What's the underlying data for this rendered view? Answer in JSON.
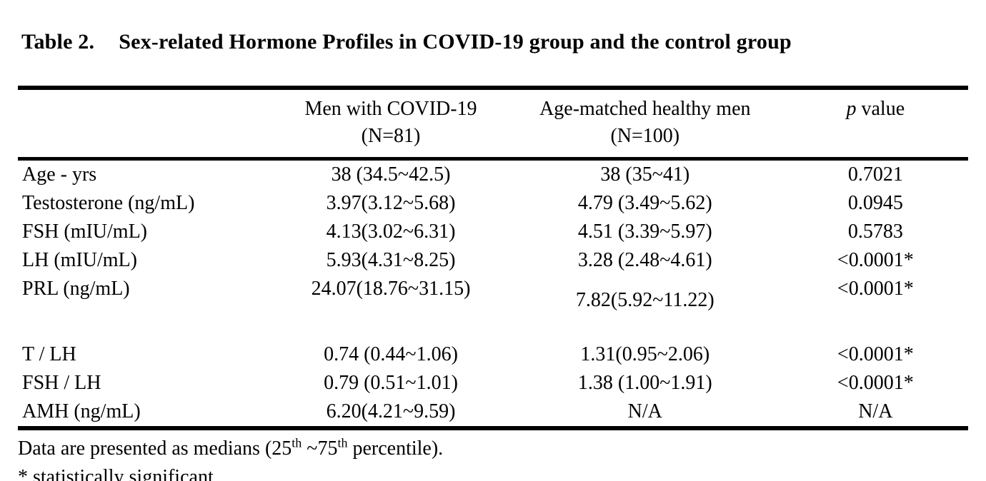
{
  "title": {
    "label": "Table 2.",
    "text": "Sex-related Hormone Profiles in COVID-19 group and the control group"
  },
  "table": {
    "header": {
      "covid_group_line1": "Men with COVID-19",
      "covid_group_line2": "(N=81)",
      "control_group_line1": "Age-matched healthy men",
      "control_group_line2": "(N=100)",
      "p_italic": "p",
      "p_rest": " value"
    },
    "rows": [
      {
        "label": "Age - yrs",
        "covid": "38 (34.5~42.5)",
        "control": "38 (35~41)",
        "p": "0.7021"
      },
      {
        "label": "Testosterone (ng/mL)",
        "covid": "3.97(3.12~5.68)",
        "control": "4.79 (3.49~5.62)",
        "p": "0.0945"
      },
      {
        "label": "FSH (mIU/mL)",
        "covid": "4.13(3.02~6.31)",
        "control": "4.51 (3.39~5.97)",
        "p": "0.5783"
      },
      {
        "label": "LH (mIU/mL)",
        "covid": "5.93(4.31~8.25)",
        "control": "3.28 (2.48~4.61)",
        "p": "<0.0001*"
      },
      {
        "label": "PRL (ng/mL)",
        "covid": "24.07(18.76~31.15)",
        "control": "7.82(5.92~11.22)",
        "p": "<0.0001*"
      },
      {
        "label": "T / LH",
        "covid": "0.74 (0.44~1.06)",
        "control": "1.31(0.95~2.06)",
        "p": "<0.0001*"
      },
      {
        "label": "FSH / LH",
        "covid": "0.79 (0.51~1.01)",
        "control": "1.38 (1.00~1.91)",
        "p": "<0.0001*"
      },
      {
        "label": "AMH (ng/mL)",
        "covid": "6.20(4.21~9.59)",
        "control": "N/A",
        "p": "N/A"
      }
    ]
  },
  "footnotes": {
    "line1_part1": "Data are presented as medians (25",
    "line1_sup1": "th",
    "line1_part2": " ~75",
    "line1_sup2": "th",
    "line1_part3": " percentile).",
    "line2": "* statistically significant"
  },
  "colors": {
    "background": "#ffffff",
    "text": "#000000",
    "rule": "#000000"
  }
}
